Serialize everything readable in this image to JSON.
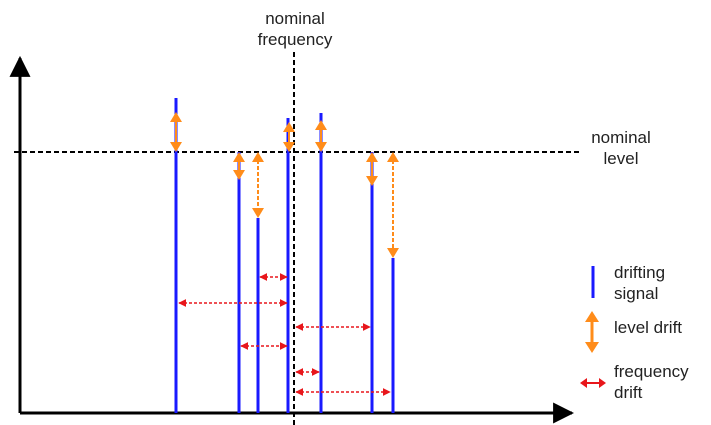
{
  "labels": {
    "nominal_frequency_line1": "nominal",
    "nominal_frequency_line2": "frequency",
    "nominal_level_line1": "nominal",
    "nominal_level_line2": "level"
  },
  "legend": {
    "signal_line1": "drifting",
    "signal_line2": "signal",
    "level_drift": "level drift",
    "frequency_line1": "frequency",
    "frequency_line2": "drift"
  },
  "colors": {
    "signal": "#1a1aff",
    "level_drift": "#ff8c1a",
    "frequency_drift": "#e8161b",
    "axis": "#000000",
    "text": "#222222"
  }
}
